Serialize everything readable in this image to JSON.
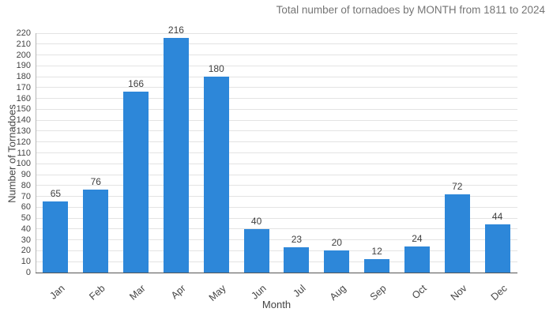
{
  "chart_data": {
    "type": "bar",
    "title": "Total number of tornadoes by MONTH from 1811 to 2024",
    "xlabel": "Month",
    "ylabel": "Number of Tornadoes",
    "categories": [
      "Jan",
      "Feb",
      "Mar",
      "Apr",
      "May",
      "Jun",
      "Jul",
      "Aug",
      "Sep",
      "Oct",
      "Nov",
      "Dec"
    ],
    "values": [
      65,
      76,
      166,
      216,
      180,
      40,
      23,
      20,
      12,
      24,
      72,
      44
    ],
    "ylim": [
      0,
      220
    ],
    "ytick_step": 10,
    "grid": "horizontal",
    "legend": "none",
    "bar_color": "#2d87d9",
    "title_color": "#757575",
    "axis_text_color": "#444444"
  }
}
